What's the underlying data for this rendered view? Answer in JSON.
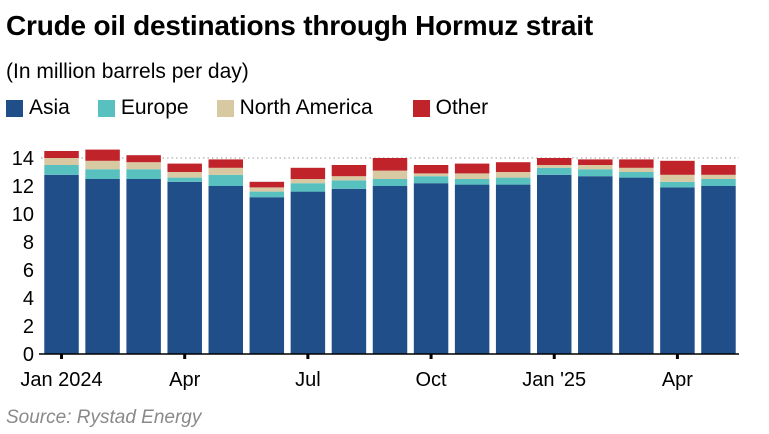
{
  "title": "Crude oil destinations through Hormuz strait",
  "subtitle": "(In million barrels per day)",
  "source": "Source: Rystad Energy",
  "chart_data": {
    "type": "bar",
    "stacked": true,
    "categories": [
      "Jan 2024",
      "Feb 2024",
      "Mar 2024",
      "Apr 2024",
      "May 2024",
      "Jun 2024",
      "Jul 2024",
      "Aug 2024",
      "Sep 2024",
      "Oct 2024",
      "Nov 2024",
      "Dec 2024",
      "Jan 2025",
      "Feb 2025",
      "Mar 2025",
      "Apr 2025",
      "May 2025"
    ],
    "x_tick_labels": [
      {
        "index": 0,
        "label": "Jan 2024"
      },
      {
        "index": 3,
        "label": "Apr"
      },
      {
        "index": 6,
        "label": "Jul"
      },
      {
        "index": 9,
        "label": "Oct"
      },
      {
        "index": 12,
        "label": "Jan '25"
      },
      {
        "index": 15,
        "label": "Apr"
      }
    ],
    "y_ticks": [
      "0",
      "2",
      "4",
      "6",
      "8",
      "10",
      "12",
      "14"
    ],
    "ylim": [
      0,
      14.6
    ],
    "reference_line": 14,
    "series": [
      {
        "name": "Asia",
        "color": "#1f4e89",
        "values": [
          12.8,
          12.5,
          12.5,
          12.3,
          12.0,
          11.2,
          11.6,
          11.8,
          12.0,
          12.2,
          12.1,
          12.1,
          12.8,
          12.7,
          12.6,
          11.9,
          12.0
        ]
      },
      {
        "name": "Europe",
        "color": "#58c1c0",
        "values": [
          0.7,
          0.7,
          0.7,
          0.3,
          0.8,
          0.4,
          0.6,
          0.6,
          0.5,
          0.5,
          0.4,
          0.5,
          0.5,
          0.5,
          0.4,
          0.4,
          0.5
        ]
      },
      {
        "name": "North America",
        "color": "#d9c9a3",
        "values": [
          0.5,
          0.6,
          0.5,
          0.4,
          0.5,
          0.3,
          0.3,
          0.3,
          0.6,
          0.2,
          0.4,
          0.4,
          0.2,
          0.3,
          0.3,
          0.5,
          0.3
        ]
      },
      {
        "name": "Other",
        "color": "#c0242a",
        "values": [
          0.5,
          0.8,
          0.5,
          0.6,
          0.6,
          0.4,
          0.8,
          0.8,
          0.9,
          0.6,
          0.7,
          0.7,
          0.5,
          0.4,
          0.6,
          1.0,
          0.7
        ]
      }
    ],
    "grid": false,
    "legend_position": "top"
  }
}
